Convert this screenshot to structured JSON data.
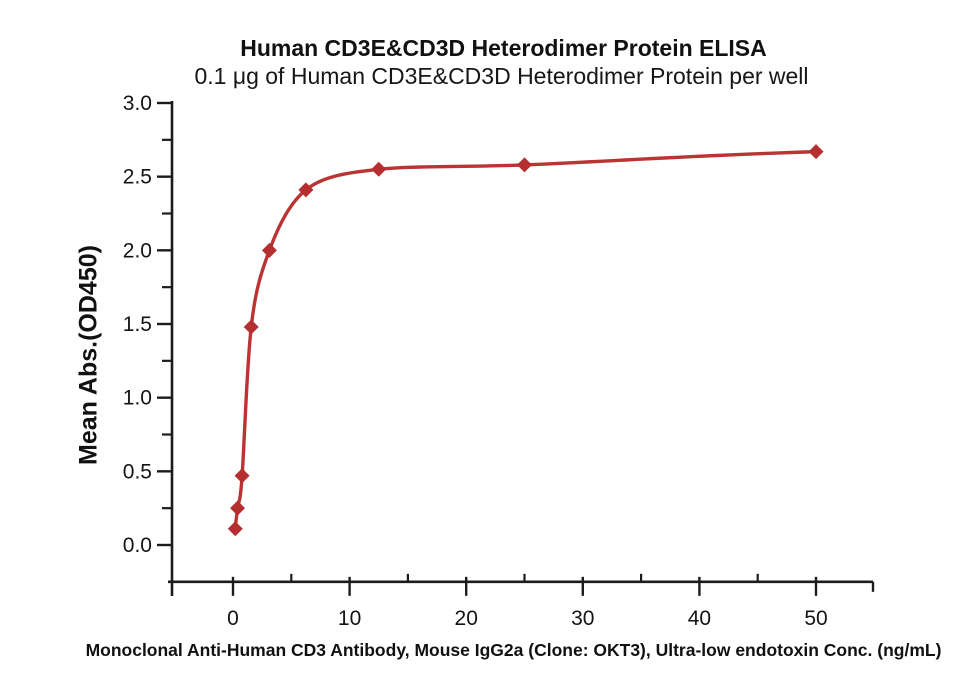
{
  "chart_data": {
    "type": "scatter",
    "title": "Human CD3E&CD3D Heterodimer Protein ELISA",
    "subtitle": "0.1 μg of Human CD3E&CD3D Heterodimer Protein per well",
    "xlabel": "Monoclonal Anti-Human CD3 Antibody, Mouse IgG2a (Clone: OKT3), Ultra-low endotoxin Conc. (ng/mL)",
    "ylabel": "Mean Abs.(OD450)",
    "series": [
      {
        "name": "Human CD3E&CD3D Heterodimer Protein",
        "marker": "diamond",
        "color": "#b52f31",
        "line_color": "#bb3434",
        "x": [
          0.195,
          0.391,
          0.781,
          1.563,
          3.125,
          6.25,
          12.5,
          25,
          50
        ],
        "y": [
          0.11,
          0.25,
          0.47,
          1.48,
          2.0,
          2.41,
          2.55,
          2.58,
          2.67
        ]
      }
    ],
    "curve_fit": "4PL sigmoidal dose-response curve through points",
    "xlim": [
      -5.5,
      55
    ],
    "ylim": [
      -0.25,
      3.0
    ],
    "x_major_ticks": [
      0,
      10,
      20,
      30,
      40,
      50
    ],
    "x_minor_ticks": [
      5,
      15,
      25,
      35,
      45
    ],
    "y_major_ticks": [
      0.0,
      0.5,
      1.0,
      1.5,
      2.0,
      2.5,
      3.0
    ],
    "y_minor_ticks": [
      0.25,
      0.75,
      1.25,
      1.75,
      2.25,
      2.75
    ],
    "grid": false,
    "legend_position": "none",
    "axis_color": "#1c1c1c",
    "text_color": "#141414"
  }
}
